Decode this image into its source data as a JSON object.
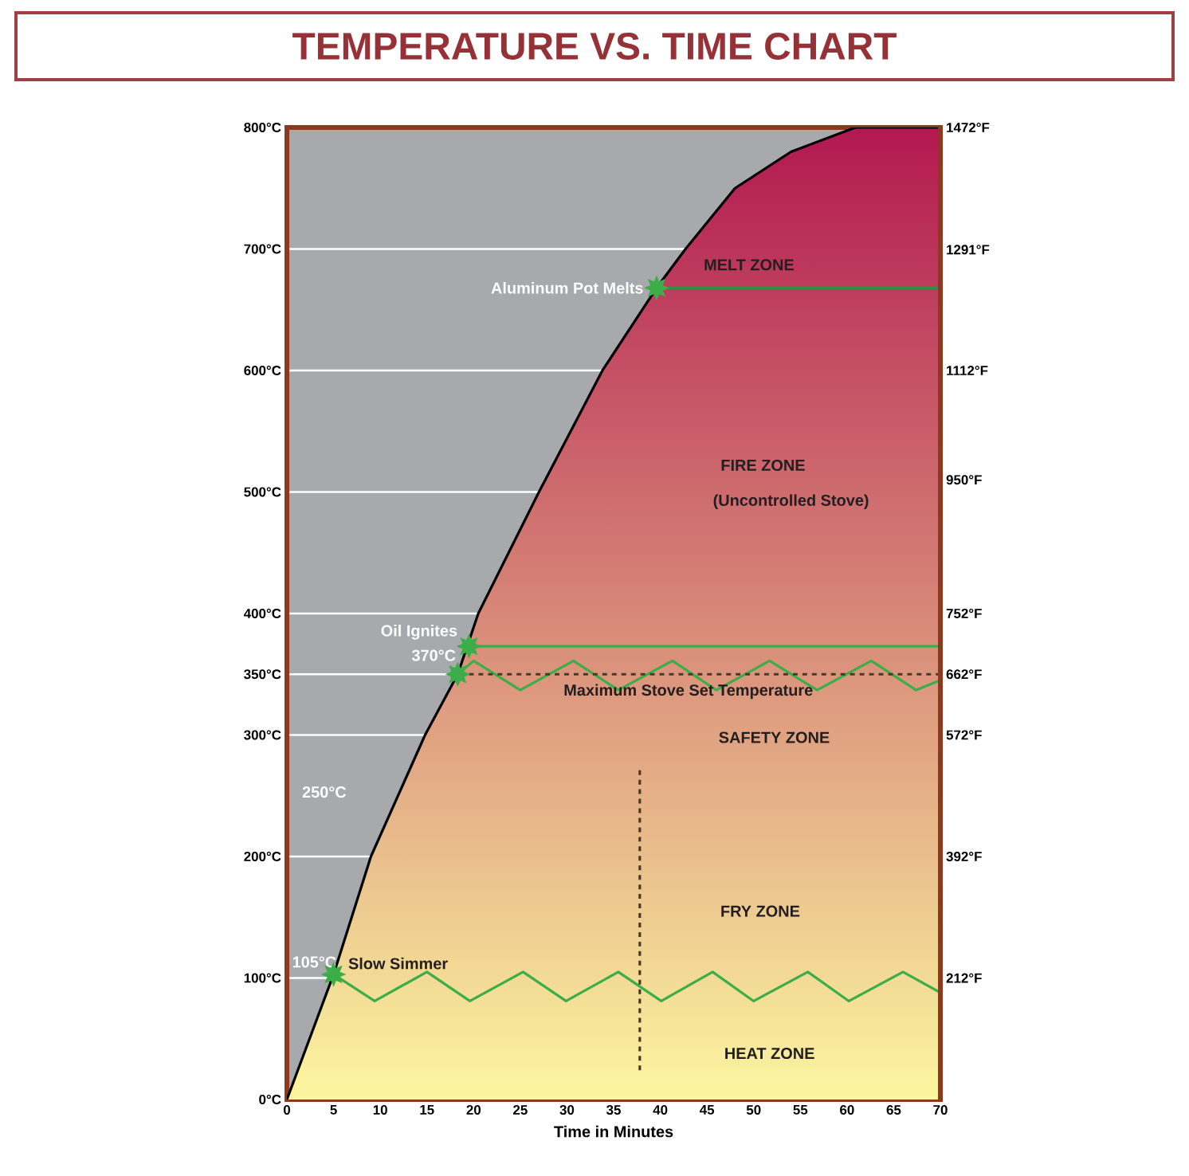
{
  "chart_data": {
    "type": "line",
    "title": "TEMPERATURE VS. TIME CHART",
    "xlabel": "Time in Minutes",
    "xlim": [
      0,
      70
    ],
    "xticks": [
      0,
      5,
      10,
      15,
      20,
      25,
      30,
      35,
      40,
      45,
      50,
      55,
      60,
      65,
      70
    ],
    "ylim": [
      0,
      800
    ],
    "yticks": [
      {
        "value": 0,
        "label": "0°C"
      },
      {
        "value": 100,
        "label": "100°C"
      },
      {
        "value": 200,
        "label": "200°C"
      },
      {
        "value": 300,
        "label": "300°C"
      },
      {
        "value": 350,
        "label": "350°C"
      },
      {
        "value": 400,
        "label": "400°C"
      },
      {
        "value": 500,
        "label": "500°C"
      },
      {
        "value": 600,
        "label": "600°C"
      },
      {
        "value": 700,
        "label": "700°C"
      },
      {
        "value": 800,
        "label": "800°C"
      }
    ],
    "y2lim": [
      32,
      1472
    ],
    "y2ticks": [
      {
        "value": 212,
        "label": "212°F"
      },
      {
        "value": 392,
        "label": "392°F"
      },
      {
        "value": 572,
        "label": "572°F"
      },
      {
        "value": 662,
        "label": "662°F"
      },
      {
        "value": 752,
        "label": "752°F"
      },
      {
        "value": 950,
        "label": "950°F"
      },
      {
        "value": 1112,
        "label": "1112°F"
      },
      {
        "value": 1291,
        "label": "1291°F"
      },
      {
        "value": 1472,
        "label": "1472°F"
      }
    ],
    "grid": "y",
    "series": [
      {
        "type": "area",
        "color": "#e8605a",
        "x": [
          0,
          5,
          9,
          14.8,
          18.3,
          20.5,
          27,
          33.8,
          39.6,
          42.7,
          48,
          54,
          60.9,
          70
        ],
        "values": [
          0,
          103,
          200,
          300,
          350,
          400,
          500,
          600,
          668,
          700,
          750,
          780,
          800,
          800
        ]
      },
      {
        "color": "#2f8f45",
        "x": [
          39.6,
          70
        ],
        "values": [
          668,
          668
        ]
      },
      {
        "color": "#3cae49",
        "x": [
          19.5,
          70
        ],
        "values": [
          373,
          373
        ]
      },
      {
        "color": "#3cae49",
        "x": [
          18.3,
          20,
          25,
          30.7,
          35.5,
          41.3,
          46,
          51.7,
          56.8,
          62.6,
          67.4,
          70
        ],
        "values": [
          350,
          361,
          337,
          361,
          337,
          361,
          337,
          361,
          337,
          361,
          337,
          345
        ]
      },
      {
        "color": "#4a3a2a",
        "line_style": "dashed",
        "x": [
          19.5,
          70
        ],
        "values": [
          350,
          350
        ]
      },
      {
        "color": "#3cae49",
        "x": [
          5,
          9.4,
          15,
          19.6,
          25.3,
          29.9,
          35.5,
          40.1,
          45.6,
          50,
          55.8,
          60.2,
          66,
          70
        ],
        "values": [
          103,
          81,
          105,
          81,
          105,
          81,
          105,
          81,
          105,
          81,
          105,
          81,
          105,
          88
        ]
      },
      {
        "color": "#4a3a2a",
        "line_style": "dashed",
        "x": [
          37.8,
          37.8
        ],
        "values": [
          271,
          22
        ]
      },
      {
        "type": "scatter",
        "color": "#3cae49",
        "marker": "star",
        "x": [
          5,
          18.3,
          19.5,
          39.6
        ],
        "values": [
          103,
          350,
          373,
          668
        ]
      }
    ],
    "annotations": [
      "MELT ZONE",
      "FIRE ZONE",
      "(Uncontrolled Stove)",
      "SAFETY ZONE",
      "FRY ZONE",
      "HEAT ZONE",
      {
        "text": "Aluminum Pot Melts",
        "x": 39.6,
        "y": 668
      },
      {
        "text": "Oil Ignites",
        "x": 19.5,
        "y": 373
      },
      {
        "text": "370°C",
        "x": 19.5,
        "y": 373
      },
      {
        "text": "Maximum Stove Set Temperature",
        "x": 43,
        "y": 350
      },
      "250°C",
      {
        "text": "105°C",
        "x": 5,
        "y": 103
      },
      {
        "text": "Slow Simmer",
        "x": 5,
        "y": 103
      }
    ]
  }
}
